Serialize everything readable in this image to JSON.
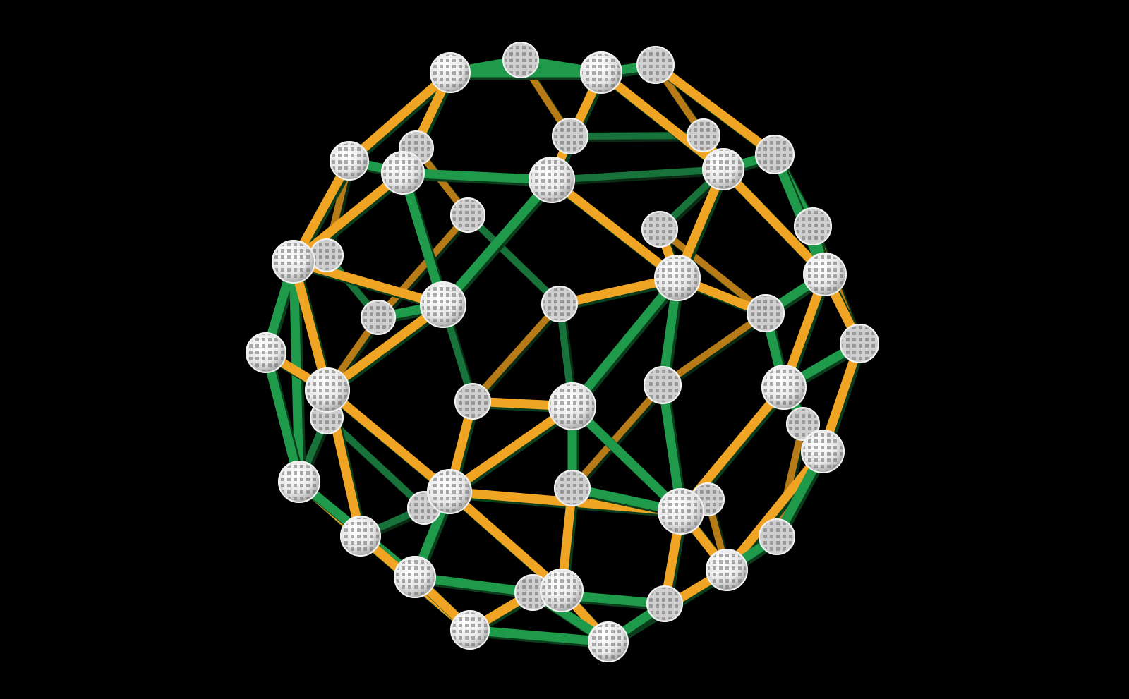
{
  "scene": {
    "background_color": "#000000",
    "object": "snub-polyhedron-ball-and-stick-model",
    "strut_colors": {
      "green": "#1f9a4a",
      "orange": "#f0a423",
      "shade": "#0b3d1c"
    },
    "node_color": "#f2f2f2",
    "node_pattern": "lattice-sphere"
  }
}
